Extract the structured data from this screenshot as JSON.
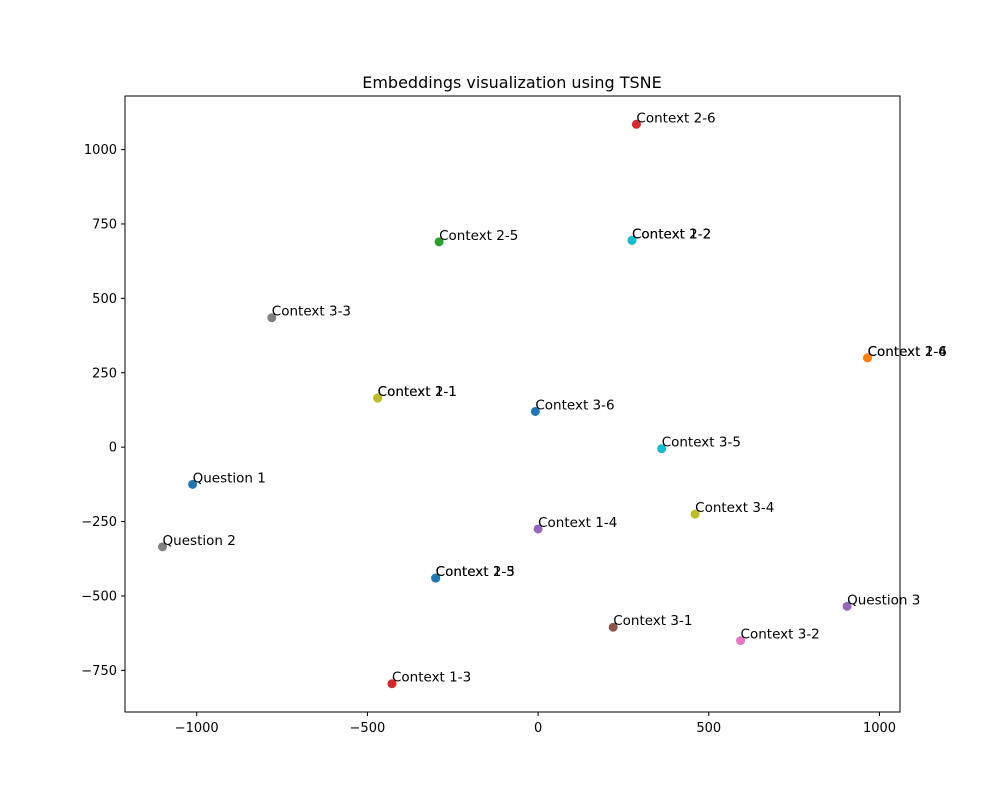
{
  "chart_data": {
    "type": "scatter",
    "title": "Embeddings visualization using TSNE",
    "xlabel": "",
    "ylabel": "",
    "xlim": [
      -1210,
      1060
    ],
    "ylim": [
      -890,
      1180
    ],
    "xticks": [
      -1000,
      -500,
      0,
      500,
      1000
    ],
    "yticks": [
      -750,
      -500,
      -250,
      0,
      250,
      500,
      750,
      1000
    ],
    "grid": false,
    "points": [
      {
        "label": "Context 2-6",
        "x": 288,
        "y": 1085,
        "color": "#d62728"
      },
      {
        "label": "Context 1-2",
        "x": 275,
        "y": 695,
        "color": "#17becf"
      },
      {
        "label": "Context 2-2",
        "x": 275,
        "y": 695,
        "color": "#17becf"
      },
      {
        "label": "Context 2-5",
        "x": -290,
        "y": 690,
        "color": "#2ca02c"
      },
      {
        "label": "Context 3-3",
        "x": -780,
        "y": 435,
        "color": "#7f7f7f"
      },
      {
        "label": "Context 1-6",
        "x": 965,
        "y": 300,
        "color": "#ff7f0e"
      },
      {
        "label": "Context 2-4",
        "x": 965,
        "y": 300,
        "color": "#ff7f0e"
      },
      {
        "label": "Context 1-1",
        "x": -470,
        "y": 165,
        "color": "#bcbd22"
      },
      {
        "label": "Context 2-1",
        "x": -470,
        "y": 165,
        "color": "#bcbd22"
      },
      {
        "label": "Context 3-6",
        "x": -8,
        "y": 120,
        "color": "#1f77b4"
      },
      {
        "label": "Context 3-5",
        "x": 362,
        "y": -5,
        "color": "#17becf"
      },
      {
        "label": "Question 1",
        "x": -1012,
        "y": -125,
        "color": "#1f77b4"
      },
      {
        "label": "Context 3-4",
        "x": 460,
        "y": -225,
        "color": "#bcbd22"
      },
      {
        "label": "Context 1-4",
        "x": 0,
        "y": -275,
        "color": "#9467bd"
      },
      {
        "label": "Question 2",
        "x": -1100,
        "y": -335,
        "color": "#7f7f7f"
      },
      {
        "label": "Context 1-5",
        "x": -300,
        "y": -440,
        "color": "#1f77b4"
      },
      {
        "label": "Context 2-3",
        "x": -300,
        "y": -440,
        "color": "#1f77b4"
      },
      {
        "label": "Question 3",
        "x": 905,
        "y": -535,
        "color": "#9467bd"
      },
      {
        "label": "Context 3-1",
        "x": 220,
        "y": -605,
        "color": "#8c564b"
      },
      {
        "label": "Context 3-2",
        "x": 593,
        "y": -650,
        "color": "#e377c2"
      },
      {
        "label": "Context 1-3",
        "x": -428,
        "y": -795,
        "color": "#d62728"
      }
    ]
  }
}
